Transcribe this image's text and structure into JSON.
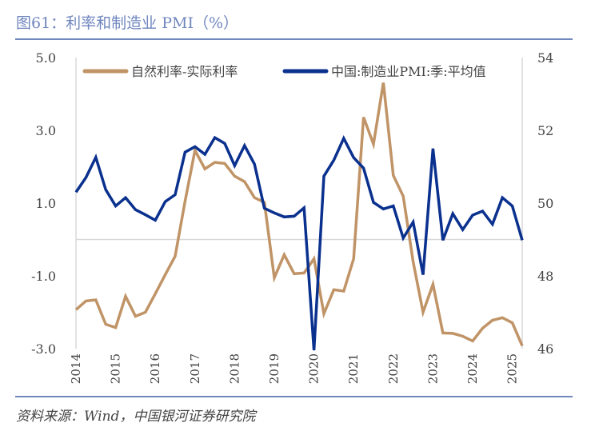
{
  "title": "图61：利率和制造业 PMI（%）",
  "source": "资料来源：Wind，中国银河证券研究院",
  "colors": {
    "title": "#6f86be",
    "series_gap": "#c09467",
    "series_pmi": "#0b318f"
  },
  "chart_data": {
    "type": "line",
    "title": "利率和制造业 PMI（%）",
    "x_start": "2014Q1",
    "frequency": "quarterly",
    "x_ticks": [
      "2014",
      "2015",
      "2016",
      "2017",
      "2018",
      "2019",
      "2020",
      "2021",
      "2022",
      "2023",
      "2024",
      "2025"
    ],
    "y_left": {
      "range": [
        -3,
        5
      ],
      "ticks": [
        "5.0",
        "3.0",
        "1.0",
        "-1.0",
        "-3.0"
      ],
      "tick_values": [
        5,
        3,
        1,
        -1,
        -3
      ]
    },
    "y_right": {
      "range": [
        46,
        54
      ],
      "ticks": [
        "54",
        "52",
        "50",
        "48",
        "46"
      ],
      "tick_values": [
        54,
        52,
        50,
        48,
        46
      ]
    },
    "reference_line": {
      "axis": "left",
      "value": 0
    },
    "legend_position": "top",
    "series": [
      {
        "name": "自然利率-实际利率",
        "axis": "left",
        "values": [
          -1.93,
          -1.69,
          -1.66,
          -2.33,
          -2.42,
          -1.56,
          -2.11,
          -2.0,
          -1.49,
          -0.97,
          -0.46,
          1.05,
          2.45,
          1.94,
          2.12,
          2.09,
          1.74,
          1.59,
          1.15,
          1.02,
          -1.05,
          -0.42,
          -0.94,
          -0.92,
          -0.53,
          -2.04,
          -1.38,
          -1.42,
          -0.53,
          3.36,
          2.62,
          4.31,
          1.76,
          1.19,
          -0.61,
          -2.0,
          -1.23,
          -2.57,
          -2.58,
          -2.66,
          -2.79,
          -2.44,
          -2.22,
          -2.15,
          -2.29,
          -2.92
        ]
      },
      {
        "name": "中国:制造业PMI:季:平均值",
        "axis": "right",
        "values": [
          50.3,
          50.7,
          51.26,
          50.37,
          49.92,
          50.15,
          49.82,
          49.68,
          49.53,
          50.04,
          50.23,
          51.4,
          51.55,
          51.34,
          51.8,
          51.64,
          51.03,
          51.58,
          51.07,
          49.86,
          49.73,
          49.62,
          49.64,
          49.87,
          45.95,
          50.74,
          51.18,
          51.78,
          51.25,
          50.96,
          50.02,
          49.84,
          49.92,
          49.04,
          49.48,
          48.03,
          51.5,
          48.98,
          49.71,
          49.27,
          49.67,
          49.78,
          49.42,
          50.15,
          49.92,
          48.98
        ]
      }
    ]
  }
}
